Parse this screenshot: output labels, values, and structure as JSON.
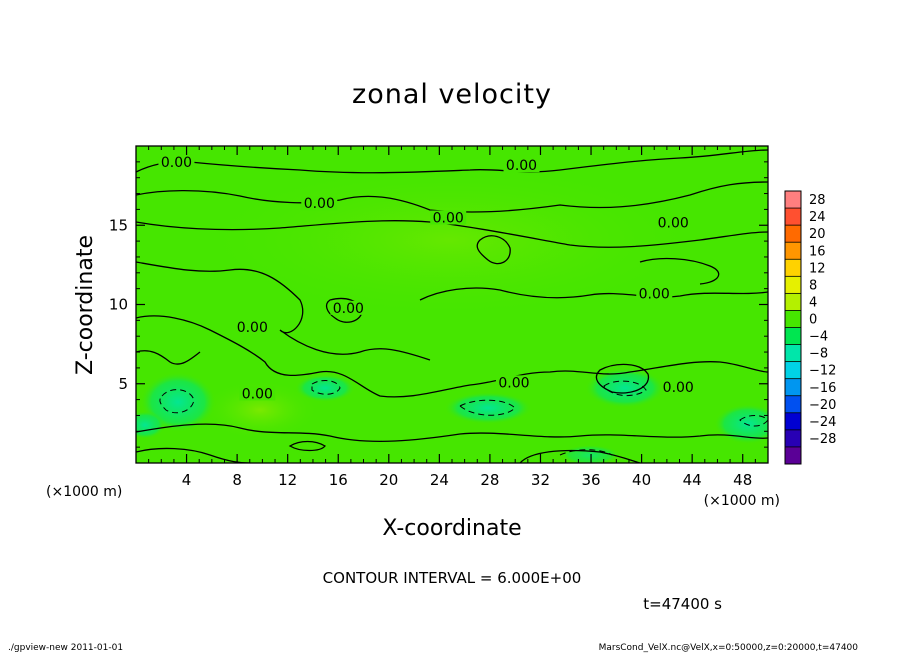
{
  "chart_data": {
    "type": "heatmap",
    "title": "zonal velocity",
    "xlabel": "X-coordinate",
    "ylabel": "Z-coordinate",
    "x_unit_label": "(×1000 m)",
    "y_unit_label": "(×1000 m)",
    "xlim": [
      0,
      50
    ],
    "ylim": [
      0,
      20
    ],
    "x_ticks": [
      4,
      8,
      12,
      16,
      20,
      24,
      28,
      32,
      36,
      40,
      44,
      48
    ],
    "y_ticks": [
      5,
      10,
      15
    ],
    "colorbar": {
      "levels": [
        28,
        24,
        20,
        16,
        12,
        8,
        4,
        0,
        -4,
        -8,
        -12,
        -16,
        -20,
        -24,
        -28
      ],
      "colors": [
        "#ff7f7f",
        "#ff5030",
        "#ff6a00",
        "#ff9600",
        "#ffd200",
        "#e6f000",
        "#b4f000",
        "#46e600",
        "#00e650",
        "#00e6aa",
        "#00d2e6",
        "#0096f0",
        "#0050f0",
        "#0000d2",
        "#2800b4",
        "#5a0096"
      ]
    },
    "field_description": "mostly near 0, weak negative pockets near the ground",
    "contour_labels": [
      {
        "text": "0.00",
        "x": 3.2,
        "z": 18.8
      },
      {
        "text": "0.00",
        "x": 14.5,
        "z": 16.2
      },
      {
        "text": "0.00",
        "x": 24.7,
        "z": 15.3
      },
      {
        "text": "0.00",
        "x": 30.5,
        "z": 18.6
      },
      {
        "text": "0.00",
        "x": 42.5,
        "z": 15.0
      },
      {
        "text": "0.00",
        "x": 41.0,
        "z": 10.5
      },
      {
        "text": "0.00",
        "x": 16.8,
        "z": 9.6
      },
      {
        "text": "0.00",
        "x": 9.2,
        "z": 8.4
      },
      {
        "text": "0.00",
        "x": 9.6,
        "z": 4.2
      },
      {
        "text": "0.00",
        "x": 29.9,
        "z": 4.9
      },
      {
        "text": "0.00",
        "x": 42.9,
        "z": 4.6
      }
    ],
    "contour_interval_text": "CONTOUR INTERVAL = 6.000E+00",
    "time_text": "t=47400 s"
  },
  "footer": {
    "left": "./gpview-new   2011-01-01",
    "right": "MarsCond_VelX.nc@VelX,x=0:50000,z=0:20000,t=47400"
  }
}
